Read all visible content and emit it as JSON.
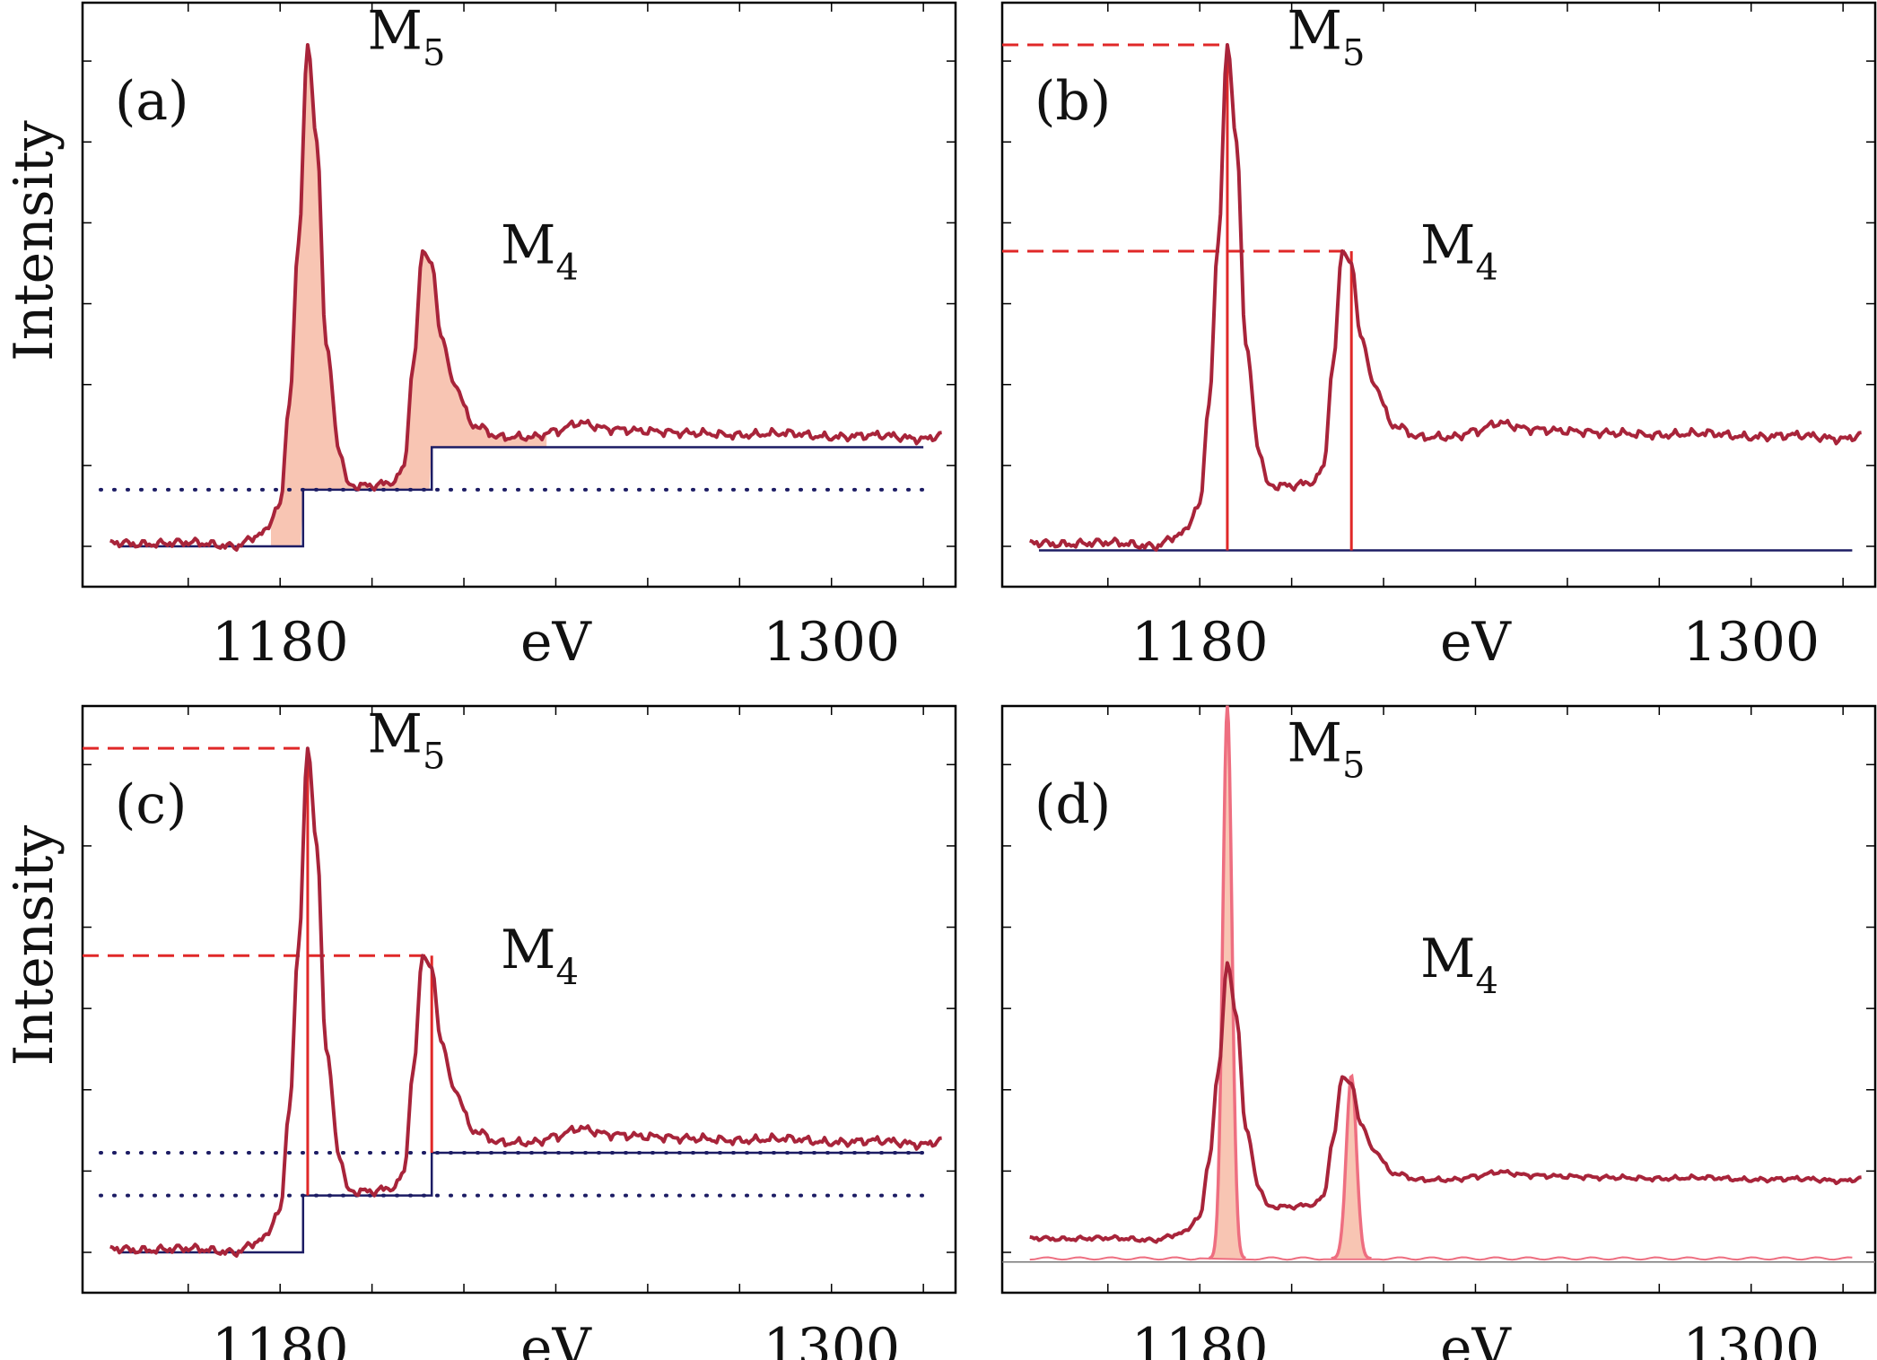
{
  "chart_data": {
    "type": "line",
    "x_unit_label": "eV",
    "y_label": "Intensity",
    "xlim": [
      1137,
      1327
    ],
    "ylim": [
      0,
      13
    ],
    "x_tick_labels": [
      "1180",
      "1300"
    ],
    "peak_names": [
      "M",
      "M"
    ],
    "peak_subscripts": [
      "5",
      "4"
    ],
    "spectrum": {
      "x": [
        1143,
        1150,
        1160,
        1170,
        1176,
        1180,
        1182,
        1184,
        1186,
        1188,
        1190,
        1193,
        1195,
        1200,
        1205,
        1207,
        1209,
        1211,
        1213,
        1215,
        1218,
        1222,
        1228,
        1235,
        1240,
        1245,
        1252,
        1260,
        1270,
        1280,
        1290,
        1300,
        1310,
        1320,
        1324
      ],
      "y": [
        0.1,
        0.05,
        0.1,
        0.0,
        0.3,
        1.0,
        3.5,
        7.5,
        12.4,
        10.0,
        5.0,
        2.3,
        1.5,
        1.5,
        1.6,
        2.0,
        4.5,
        7.3,
        7.0,
        5.2,
        4.0,
        3.0,
        2.7,
        2.7,
        2.85,
        3.05,
        2.9,
        2.85,
        2.8,
        2.75,
        2.8,
        2.7,
        2.75,
        2.65,
        2.75
      ]
    },
    "edges": {
      "positions": [
        1185,
        1213
      ],
      "levels": [
        0,
        1.4,
        2.45
      ],
      "x_range": [
        1145,
        1320
      ]
    },
    "panels": [
      {
        "label": "(a)",
        "variant": "area-with-steps"
      },
      {
        "label": "(b)",
        "variant": "peak-heights-flat-baseline"
      },
      {
        "label": "(c)",
        "variant": "peak-heights-with-steps"
      },
      {
        "label": "(d)",
        "variant": "fitted-lines"
      }
    ]
  },
  "colors": {
    "spectrum": "#a8243a",
    "fill": "#f8c5b3",
    "marker": "#e02828",
    "baseline": "#1c1c64",
    "fit": "#ee6e80",
    "frame": "#000000"
  }
}
